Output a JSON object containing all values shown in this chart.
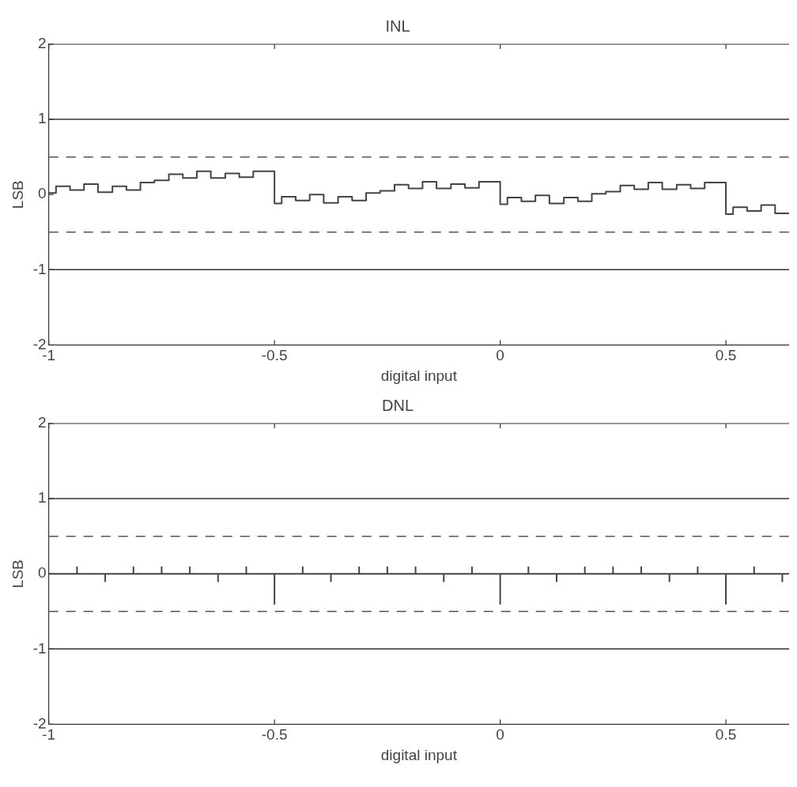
{
  "chart_data": [
    {
      "type": "step",
      "title": "INL",
      "xlabel": "digital input",
      "ylabel": "LSB",
      "xlim": [
        -1,
        0.64
      ],
      "ylim": [
        -2,
        2
      ],
      "xticks": [
        -1,
        -0.5,
        0,
        0.5
      ],
      "yticks": [
        -2,
        -1,
        0,
        1,
        2
      ],
      "ref_lines": [
        {
          "axis": "y",
          "value": 1,
          "line_style": "solid",
          "color": "#333333"
        },
        {
          "axis": "y",
          "value": -1,
          "line_style": "solid",
          "color": "#333333"
        },
        {
          "axis": "y",
          "value": 0.5,
          "line_style": "dashed",
          "color": "#555555"
        },
        {
          "axis": "y",
          "value": -0.5,
          "line_style": "dashed",
          "color": "#555555"
        }
      ],
      "series": [
        {
          "color": "#444444",
          "x": [
            -1,
            -0.984,
            -0.953,
            -0.922,
            -0.891,
            -0.859,
            -0.828,
            -0.797,
            -0.766,
            -0.734,
            -0.703,
            -0.672,
            -0.641,
            -0.609,
            -0.578,
            -0.547,
            -0.5,
            -0.484,
            -0.453,
            -0.422,
            -0.391,
            -0.359,
            -0.328,
            -0.297,
            -0.266,
            -0.234,
            -0.203,
            -0.172,
            -0.141,
            -0.109,
            -0.078,
            -0.047,
            0,
            0.016,
            0.047,
            0.078,
            0.109,
            0.141,
            0.172,
            0.203,
            0.234,
            0.266,
            0.297,
            0.328,
            0.359,
            0.391,
            0.422,
            0.453,
            0.5,
            0.516,
            0.547,
            0.578,
            0.609,
            0.64
          ],
          "values": [
            0.02,
            0.11,
            0.06,
            0.14,
            0.03,
            0.11,
            0.06,
            0.16,
            0.19,
            0.27,
            0.22,
            0.31,
            0.22,
            0.28,
            0.23,
            0.31,
            -0.12,
            -0.03,
            -0.08,
            0,
            -0.11,
            -0.03,
            -0.08,
            0.02,
            0.05,
            0.13,
            0.08,
            0.17,
            0.08,
            0.14,
            0.09,
            0.17,
            -0.13,
            -0.04,
            -0.09,
            -0.01,
            -0.12,
            -0.04,
            -0.09,
            0.01,
            0.04,
            0.12,
            0.07,
            0.16,
            0.07,
            0.13,
            0.08,
            0.16,
            -0.26,
            -0.17,
            -0.22,
            -0.14,
            -0.25,
            -0.25
          ]
        }
      ]
    },
    {
      "type": "line",
      "title": "DNL",
      "xlabel": "digital input",
      "ylabel": "LSB",
      "xlim": [
        -1,
        0.64
      ],
      "ylim": [
        -2,
        2
      ],
      "xticks": [
        -1,
        -0.5,
        0,
        0.5
      ],
      "yticks": [
        -2,
        -1,
        0,
        1,
        2
      ],
      "ref_lines": [
        {
          "axis": "y",
          "value": 1,
          "line_style": "solid",
          "color": "#333333"
        },
        {
          "axis": "y",
          "value": -1,
          "line_style": "solid",
          "color": "#333333"
        },
        {
          "axis": "y",
          "value": 0.5,
          "line_style": "dashed",
          "color": "#555555"
        },
        {
          "axis": "y",
          "value": -0.5,
          "line_style": "dashed",
          "color": "#555555"
        }
      ],
      "series": [
        {
          "color": "#444444",
          "x": [
            -1,
            -0.9375,
            -0.9375,
            -0.9375,
            -0.875,
            -0.875,
            -0.875,
            -0.8125,
            -0.8125,
            -0.8125,
            -0.75,
            -0.75,
            -0.75,
            -0.6875,
            -0.6875,
            -0.6875,
            -0.625,
            -0.625,
            -0.625,
            -0.5625,
            -0.5625,
            -0.5625,
            -0.5,
            -0.5,
            -0.5,
            -0.4375,
            -0.4375,
            -0.4375,
            -0.375,
            -0.375,
            -0.375,
            -0.3125,
            -0.3125,
            -0.3125,
            -0.25,
            -0.25,
            -0.25,
            -0.1875,
            -0.1875,
            -0.1875,
            -0.125,
            -0.125,
            -0.125,
            -0.0625,
            -0.0625,
            -0.0625,
            0,
            0,
            0,
            0.0625,
            0.0625,
            0.0625,
            0.125,
            0.125,
            0.125,
            0.1875,
            0.1875,
            0.1875,
            0.25,
            0.25,
            0.25,
            0.3125,
            0.3125,
            0.3125,
            0.375,
            0.375,
            0.375,
            0.4375,
            0.4375,
            0.4375,
            0.5,
            0.5,
            0.5,
            0.5625,
            0.5625,
            0.5625,
            0.625,
            0.625,
            0.625,
            0.64
          ],
          "values": [
            0,
            0,
            0.09,
            0,
            0,
            -0.1,
            0,
            0,
            0.09,
            0,
            0,
            0.09,
            0,
            0,
            0.09,
            0,
            0,
            -0.1,
            0,
            0,
            0.09,
            0,
            0,
            -0.4,
            0,
            0,
            0.09,
            0,
            0,
            -0.1,
            0,
            0,
            0.09,
            0,
            0,
            0.09,
            0,
            0,
            0.09,
            0,
            0,
            -0.1,
            0,
            0,
            0.09,
            0,
            0,
            -0.4,
            0,
            0,
            0.09,
            0,
            0,
            -0.1,
            0,
            0,
            0.09,
            0,
            0,
            0.09,
            0,
            0,
            0.09,
            0,
            0,
            -0.1,
            0,
            0,
            0.09,
            0,
            0,
            -0.4,
            0,
            0,
            0.09,
            0,
            0,
            -0.1,
            0,
            0
          ]
        }
      ]
    }
  ]
}
